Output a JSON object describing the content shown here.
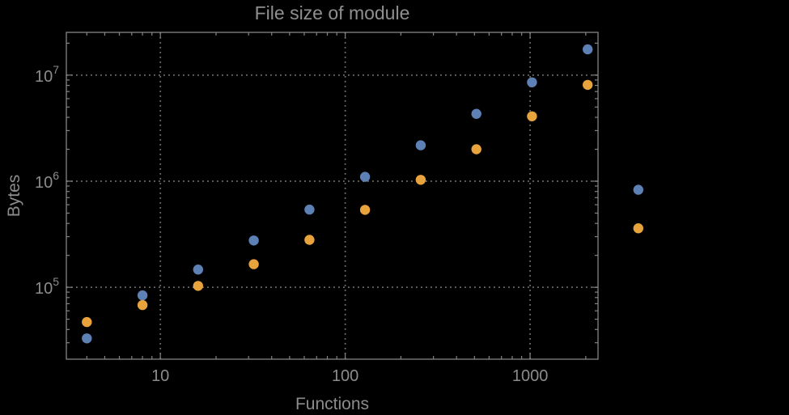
{
  "figure": {
    "background_color": "#000000",
    "frame_color": "#848484",
    "grid_color": "#707070",
    "text_color": "#8c8c8c",
    "title_color": "#8f8f8f"
  },
  "chart_data": {
    "type": "scatter",
    "title": "File size of module",
    "xlabel": "Functions",
    "ylabel": "Bytes",
    "x_scale": "log",
    "y_scale": "log",
    "xlim": [
      3.1,
      2330
    ],
    "ylim": [
      21000,
      25300000
    ],
    "grid": "dotted lines at powers of ten, both axes",
    "legend_position": "none",
    "x_ticks": [
      {
        "value": 10,
        "label": "10"
      },
      {
        "value": 100,
        "label": "100"
      },
      {
        "value": 1000,
        "label": "1000"
      }
    ],
    "y_ticks": [
      {
        "value": 100000,
        "base": "10",
        "exponent": "5"
      },
      {
        "value": 1000000,
        "base": "10",
        "exponent": "6"
      },
      {
        "value": 10000000,
        "base": "10",
        "exponent": "7"
      }
    ],
    "series": [
      {
        "name": "blue",
        "color": "#5E81B5",
        "points": [
          [
            4,
            33000
          ],
          [
            8,
            84000
          ],
          [
            16,
            147000
          ],
          [
            32,
            276000
          ],
          [
            64,
            540000
          ],
          [
            128,
            1100000
          ],
          [
            256,
            2180000
          ],
          [
            512,
            4320000
          ],
          [
            1024,
            8540000
          ],
          [
            2048,
            17500000
          ],
          [
            3850,
            830000
          ]
        ]
      },
      {
        "name": "orange",
        "color": "#E8A33D",
        "points": [
          [
            4,
            47000
          ],
          [
            8,
            68000
          ],
          [
            16,
            103000
          ],
          [
            32,
            165000
          ],
          [
            64,
            280000
          ],
          [
            128,
            537000
          ],
          [
            256,
            1030000
          ],
          [
            512,
            2000000
          ],
          [
            1024,
            4090000
          ],
          [
            2048,
            8100000
          ],
          [
            3850,
            360000
          ]
        ]
      }
    ]
  }
}
